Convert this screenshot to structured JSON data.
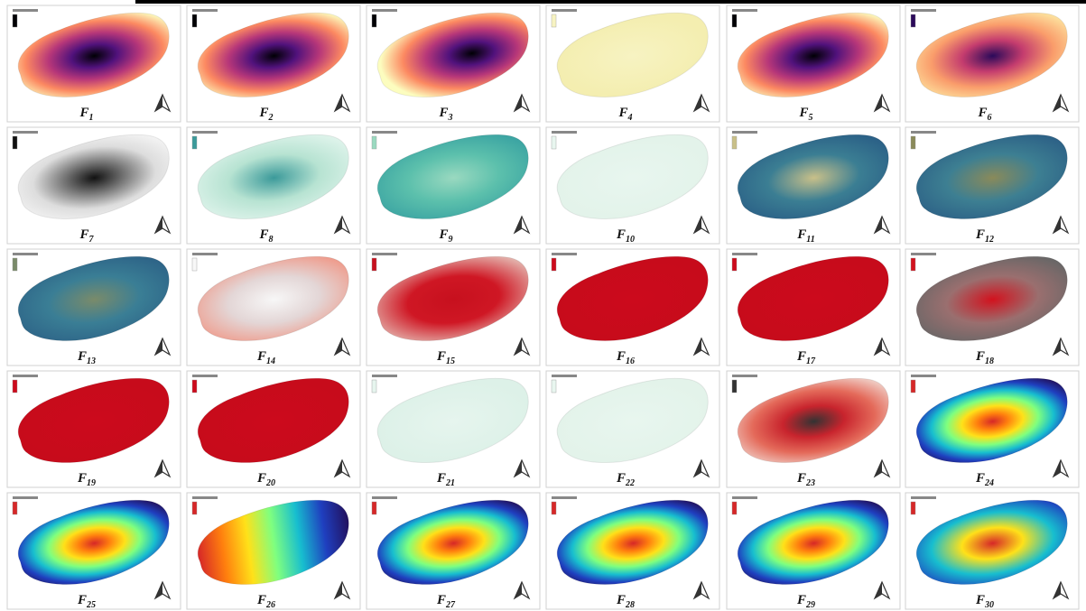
{
  "panels": [
    {
      "letter": "F",
      "sub": "1"
    },
    {
      "letter": "F",
      "sub": "2"
    },
    {
      "letter": "F",
      "sub": "3"
    },
    {
      "letter": "F",
      "sub": "4"
    },
    {
      "letter": "F",
      "sub": "5"
    },
    {
      "letter": "F",
      "sub": "6"
    },
    {
      "letter": "F",
      "sub": "7"
    },
    {
      "letter": "F",
      "sub": "8"
    },
    {
      "letter": "F",
      "sub": "9"
    },
    {
      "letter": "F",
      "sub": "10"
    },
    {
      "letter": "F",
      "sub": "11"
    },
    {
      "letter": "F",
      "sub": "12"
    },
    {
      "letter": "F",
      "sub": "13"
    },
    {
      "letter": "F",
      "sub": "14"
    },
    {
      "letter": "F",
      "sub": "15"
    },
    {
      "letter": "F",
      "sub": "16"
    },
    {
      "letter": "F",
      "sub": "17"
    },
    {
      "letter": "F",
      "sub": "18"
    },
    {
      "letter": "F",
      "sub": "19"
    },
    {
      "letter": "F",
      "sub": "20"
    },
    {
      "letter": "F",
      "sub": "21"
    },
    {
      "letter": "F",
      "sub": "22"
    },
    {
      "letter": "F",
      "sub": "23"
    },
    {
      "letter": "F",
      "sub": "24"
    },
    {
      "letter": "F",
      "sub": "25"
    },
    {
      "letter": "F",
      "sub": "26"
    },
    {
      "letter": "F",
      "sub": "27"
    },
    {
      "letter": "F",
      "sub": "28"
    },
    {
      "letter": "F",
      "sub": "29"
    },
    {
      "letter": "F",
      "sub": "30"
    }
  ]
}
